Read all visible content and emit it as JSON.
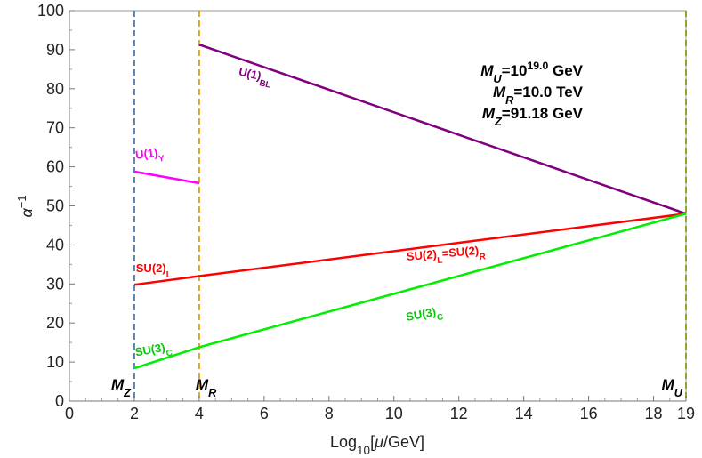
{
  "chart_data": {
    "type": "line",
    "xlabel": {
      "prefix": "Log",
      "sub": "10",
      "suffix": "[",
      "mu": "μ",
      "end": "/GeV]"
    },
    "ylabel": {
      "base": "α",
      "sup": "−1"
    },
    "xlim": [
      0,
      19
    ],
    "ylim": [
      0,
      100
    ],
    "x_ticks": [
      {
        "v": 0,
        "label": "0"
      },
      {
        "v": 2,
        "label": "2"
      },
      {
        "v": 4,
        "label": "4"
      },
      {
        "v": 6,
        "label": "6"
      },
      {
        "v": 8,
        "label": "8"
      },
      {
        "v": 10,
        "label": "10"
      },
      {
        "v": 12,
        "label": "12"
      },
      {
        "v": 14,
        "label": "14"
      },
      {
        "v": 16,
        "label": "16"
      },
      {
        "v": 18,
        "label": "18"
      },
      {
        "v": 19,
        "label": "19"
      }
    ],
    "y_ticks": [
      {
        "v": 0,
        "label": "0"
      },
      {
        "v": 10,
        "label": "10"
      },
      {
        "v": 20,
        "label": "20"
      },
      {
        "v": 30,
        "label": "30"
      },
      {
        "v": 40,
        "label": "40"
      },
      {
        "v": 50,
        "label": "50"
      },
      {
        "v": 60,
        "label": "60"
      },
      {
        "v": 70,
        "label": "70"
      },
      {
        "v": 80,
        "label": "80"
      },
      {
        "v": 90,
        "label": "90"
      },
      {
        "v": 100,
        "label": "100"
      }
    ],
    "series": [
      {
        "id": "u1y",
        "color": "#ff00ff",
        "x": [
          2,
          4
        ],
        "y": [
          58.8,
          55.8
        ]
      },
      {
        "id": "su2l",
        "color": "#ff0000",
        "x": [
          2,
          4
        ],
        "y": [
          29.8,
          32.0
        ]
      },
      {
        "id": "su3c-low",
        "color": "#00ee00",
        "x": [
          2,
          4
        ],
        "y": [
          8.4,
          13.8
        ]
      },
      {
        "id": "u1bl",
        "color": "#800080",
        "x": [
          4,
          19
        ],
        "y": [
          91.3,
          48.0
        ]
      },
      {
        "id": "su2lr",
        "color": "#ff0000",
        "x": [
          4,
          19
        ],
        "y": [
          32.0,
          48.0
        ]
      },
      {
        "id": "su3c-high",
        "color": "#00ee00",
        "x": [
          4,
          19
        ],
        "y": [
          13.8,
          48.0
        ]
      }
    ],
    "vlines": [
      {
        "id": "mz",
        "x": 2,
        "color": "#5b84b1"
      },
      {
        "id": "mr",
        "x": 4,
        "color": "#e0a020"
      },
      {
        "id": "mu",
        "x": 19,
        "color": "#8aa830"
      }
    ],
    "line_labels": [
      {
        "id": "u1y",
        "base": "U(1)",
        "sub": "Y",
        "color": "#ff00ff",
        "x": 2.05,
        "y": 62,
        "rot": -7
      },
      {
        "id": "su2l",
        "base": "SU(2)",
        "sub": "L",
        "color": "#ff0000",
        "x": 2.05,
        "y": 33,
        "rot": 0
      },
      {
        "id": "su3c-low",
        "base": "SU(3)",
        "sub": "C",
        "color": "#00cc00",
        "x": 2.05,
        "y": 11.5,
        "rot": -10
      },
      {
        "id": "u1bl",
        "base": "U(1)",
        "sub": "BL",
        "color": "#800080",
        "x": 5.2,
        "y": 83.5,
        "rot": 13
      },
      {
        "id": "su2lr",
        "parts": [
          {
            "t": "SU(2)"
          },
          {
            "t": "L",
            "sub": true
          },
          {
            "t": "=SU(2)"
          },
          {
            "t": "R",
            "sub": true
          }
        ],
        "color": "#ff0000",
        "x": 10.4,
        "y": 36,
        "rot": -5
      },
      {
        "id": "su3c-high",
        "base": "SU(3)",
        "sub": "C",
        "color": "#00cc00",
        "x": 10.4,
        "y": 20.5,
        "rot": -11
      }
    ],
    "info_lines": [
      {
        "parts": [
          {
            "t": "M",
            "it": true
          },
          {
            "t": "U",
            "sub": true,
            "it": true
          },
          {
            "t": "=10"
          },
          {
            "t": "19.0",
            "sup": true
          },
          {
            "t": " GeV"
          }
        ]
      },
      {
        "parts": [
          {
            "t": "M",
            "it": true
          },
          {
            "t": "R",
            "sub": true,
            "it": true
          },
          {
            "t": "=10.0 TeV"
          }
        ]
      },
      {
        "parts": [
          {
            "t": "M",
            "it": true
          },
          {
            "t": "Z",
            "sub": true,
            "it": true
          },
          {
            "t": "=91.18 GeV"
          }
        ]
      }
    ],
    "scale_marks": [
      {
        "id": "mz",
        "base": "M",
        "sub": "Z",
        "x": 2
      },
      {
        "id": "mr",
        "base": "M",
        "sub": "R",
        "x": 4
      },
      {
        "id": "mu",
        "base": "M",
        "sub": "U",
        "x": 19
      }
    ]
  }
}
